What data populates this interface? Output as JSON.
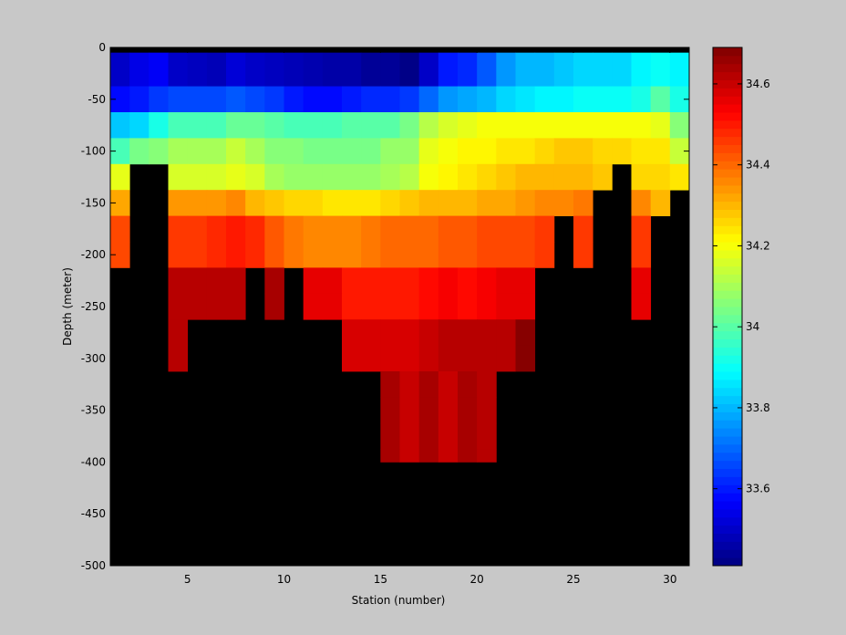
{
  "chart_data": {
    "type": "heatmap",
    "title": "",
    "xlabel": "Station (number)",
    "ylabel": "Depth (meter)",
    "x_range": [
      1,
      31
    ],
    "y_range": [
      -500,
      0
    ],
    "x_ticks": [
      5,
      10,
      15,
      20,
      25,
      30
    ],
    "y_ticks": [
      0,
      -50,
      -100,
      -150,
      -200,
      -250,
      -300,
      -350,
      -400,
      -450,
      -500
    ],
    "colorbar": {
      "range": [
        33.41,
        34.69
      ],
      "ticks": [
        33.6,
        33.8,
        34,
        34.2,
        34.4,
        34.6
      ],
      "tick_labels": [
        "33.6",
        "33.8",
        "34",
        "34.2",
        "34.4",
        "34.6"
      ],
      "colormap": "jet"
    },
    "no_data_color": "#000000",
    "stations": [
      1,
      2,
      3,
      4,
      5,
      6,
      7,
      8,
      9,
      10,
      11,
      12,
      13,
      14,
      15,
      16,
      17,
      18,
      19,
      20,
      21,
      22,
      23,
      24,
      25,
      26,
      27,
      28,
      29,
      30
    ],
    "depth_levels": [
      -2.5,
      -25,
      -50,
      -75,
      -100,
      -125,
      -150,
      -175,
      -200,
      -225,
      -250,
      -275,
      -300,
      -325,
      -350,
      -375,
      -400
    ],
    "depth_bounds": [
      0,
      -5,
      -37.5,
      -62.5,
      -87.5,
      -112.5,
      -137.5,
      -162.5,
      -187.5,
      -212.5,
      -237.5,
      -262.5,
      -287.5,
      -312.5,
      -337.5,
      -362.5,
      -387.5,
      -400
    ],
    "salinity": [
      [
        null,
        null,
        null,
        null,
        null,
        null,
        null,
        null,
        null,
        null,
        null,
        null,
        null,
        null,
        null,
        null,
        null,
        null,
        null,
        null,
        null,
        null,
        null,
        null,
        null,
        null,
        null,
        null,
        null,
        null
      ],
      [
        33.5,
        33.54,
        33.56,
        33.5,
        33.49,
        33.48,
        33.52,
        33.5,
        33.49,
        33.48,
        33.47,
        33.46,
        33.46,
        33.44,
        33.44,
        33.42,
        33.5,
        33.6,
        33.62,
        33.68,
        33.76,
        33.8,
        33.8,
        33.82,
        33.84,
        33.84,
        33.84,
        33.88,
        33.9,
        33.88
      ],
      [
        33.58,
        33.6,
        33.64,
        33.66,
        33.66,
        33.66,
        33.68,
        33.66,
        33.64,
        33.6,
        33.58,
        33.58,
        33.6,
        33.62,
        33.62,
        33.64,
        33.7,
        33.76,
        33.78,
        33.8,
        33.84,
        33.86,
        33.88,
        33.88,
        33.9,
        33.9,
        33.9,
        33.92,
        34.0,
        33.92
      ],
      [
        33.82,
        33.84,
        33.92,
        33.98,
        33.98,
        33.98,
        34.02,
        34.02,
        34.0,
        33.98,
        33.98,
        33.98,
        34.0,
        34.0,
        34.0,
        34.04,
        34.12,
        34.16,
        34.18,
        34.2,
        34.2,
        34.2,
        34.2,
        34.2,
        34.2,
        34.2,
        34.2,
        34.2,
        34.18,
        34.06
      ],
      [
        33.98,
        34.04,
        34.06,
        34.1,
        34.1,
        34.1,
        34.14,
        34.1,
        34.06,
        34.06,
        34.04,
        34.04,
        34.04,
        34.04,
        34.08,
        34.08,
        34.18,
        34.2,
        34.22,
        34.22,
        34.24,
        34.24,
        34.26,
        34.28,
        34.28,
        34.26,
        34.26,
        34.24,
        34.24,
        34.14
      ],
      [
        34.18,
        null,
        null,
        34.16,
        34.16,
        34.16,
        34.18,
        34.16,
        34.1,
        34.08,
        34.08,
        34.08,
        34.08,
        34.08,
        34.1,
        34.12,
        34.2,
        34.22,
        34.24,
        34.26,
        34.28,
        34.3,
        34.3,
        34.3,
        34.3,
        34.28,
        null,
        34.26,
        34.26,
        34.24
      ],
      [
        34.32,
        null,
        null,
        34.34,
        34.34,
        34.34,
        34.36,
        34.3,
        34.28,
        34.26,
        34.26,
        34.24,
        34.24,
        34.24,
        34.26,
        34.28,
        34.3,
        34.3,
        34.3,
        34.32,
        34.32,
        34.34,
        34.36,
        34.36,
        34.38,
        null,
        null,
        34.36,
        34.3,
        null
      ],
      [
        34.44,
        null,
        null,
        34.46,
        34.46,
        34.48,
        34.5,
        34.48,
        34.42,
        34.38,
        34.36,
        34.36,
        34.36,
        34.38,
        34.4,
        34.4,
        34.4,
        34.42,
        34.42,
        34.44,
        34.44,
        34.44,
        34.46,
        null,
        34.46,
        null,
        null,
        34.46,
        null,
        null
      ],
      [
        34.44,
        null,
        null,
        34.46,
        34.46,
        34.48,
        34.5,
        34.48,
        34.42,
        34.38,
        34.36,
        34.36,
        34.36,
        34.38,
        34.4,
        34.4,
        34.4,
        34.42,
        34.42,
        34.44,
        34.44,
        34.44,
        34.46,
        null,
        34.46,
        null,
        null,
        34.46,
        null,
        null
      ],
      [
        null,
        null,
        null,
        34.62,
        34.62,
        34.62,
        34.62,
        null,
        34.64,
        null,
        34.56,
        34.56,
        34.5,
        34.5,
        34.5,
        34.5,
        34.52,
        34.54,
        34.52,
        34.54,
        34.56,
        34.56,
        null,
        null,
        null,
        null,
        null,
        34.56,
        null,
        null
      ],
      [
        null,
        null,
        null,
        34.62,
        34.62,
        34.62,
        34.62,
        null,
        34.64,
        null,
        34.56,
        34.56,
        34.5,
        34.5,
        34.5,
        34.5,
        34.52,
        34.54,
        34.52,
        34.54,
        34.56,
        34.56,
        null,
        null,
        null,
        null,
        null,
        34.56,
        null,
        null
      ],
      [
        null,
        null,
        null,
        34.62,
        null,
        null,
        null,
        null,
        null,
        null,
        null,
        null,
        34.58,
        34.58,
        34.58,
        34.58,
        34.6,
        34.62,
        34.62,
        34.62,
        34.62,
        34.68,
        null,
        null,
        null,
        null,
        null,
        null,
        null,
        null
      ],
      [
        null,
        null,
        null,
        34.62,
        null,
        null,
        null,
        null,
        null,
        null,
        null,
        null,
        34.58,
        34.58,
        34.58,
        34.58,
        34.6,
        34.62,
        34.62,
        34.62,
        34.62,
        34.68,
        null,
        null,
        null,
        null,
        null,
        null,
        null,
        null
      ],
      [
        null,
        null,
        null,
        null,
        null,
        null,
        null,
        null,
        null,
        null,
        null,
        null,
        null,
        null,
        34.64,
        34.6,
        34.64,
        34.6,
        34.64,
        34.62,
        null,
        null,
        null,
        null,
        null,
        null,
        null,
        null,
        null,
        null
      ],
      [
        null,
        null,
        null,
        null,
        null,
        null,
        null,
        null,
        null,
        null,
        null,
        null,
        null,
        null,
        34.64,
        34.6,
        34.64,
        34.6,
        34.64,
        34.62,
        null,
        null,
        null,
        null,
        null,
        null,
        null,
        null,
        null,
        null
      ],
      [
        null,
        null,
        null,
        null,
        null,
        null,
        null,
        null,
        null,
        null,
        null,
        null,
        null,
        null,
        34.64,
        34.6,
        34.64,
        34.6,
        34.64,
        34.62,
        null,
        null,
        null,
        null,
        null,
        null,
        null,
        null,
        null,
        null
      ],
      [
        null,
        null,
        null,
        null,
        null,
        null,
        null,
        null,
        null,
        null,
        null,
        null,
        null,
        null,
        34.64,
        34.6,
        34.64,
        34.6,
        34.64,
        34.62,
        null,
        null,
        null,
        null,
        null,
        null,
        null,
        null,
        null,
        null
      ]
    ]
  }
}
